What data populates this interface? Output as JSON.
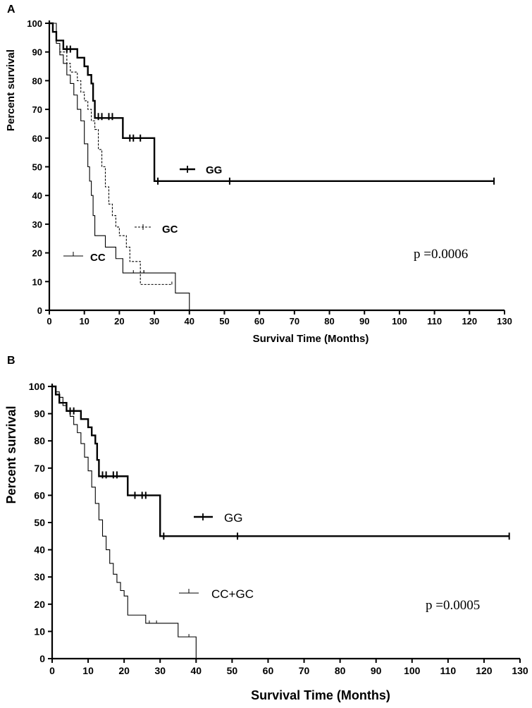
{
  "chart_data": [
    {
      "panel": "A",
      "type": "line",
      "title": "",
      "xlabel": "Survival Time (Months)",
      "ylabel": "Percent survival",
      "xlim": [
        0,
        130
      ],
      "ylim": [
        0,
        100
      ],
      "xticks": [
        0,
        10,
        20,
        30,
        40,
        50,
        60,
        70,
        80,
        90,
        100,
        110,
        120,
        130
      ],
      "yticks": [
        0,
        10,
        20,
        30,
        40,
        50,
        60,
        70,
        80,
        90,
        100
      ],
      "annotation": "p =0.0006",
      "series": [
        {
          "name": "GG",
          "style": "solid-thick",
          "steps": [
            [
              0,
              100
            ],
            [
              1,
              97
            ],
            [
              2,
              94
            ],
            [
              4,
              91
            ],
            [
              8,
              88
            ],
            [
              10,
              85
            ],
            [
              11,
              82
            ],
            [
              12,
              79
            ],
            [
              12.5,
              73
            ],
            [
              13,
              67
            ],
            [
              21,
              60
            ],
            [
              30,
              45
            ],
            [
              127,
              45
            ]
          ],
          "censors": [
            [
              5,
              91
            ],
            [
              6,
              91
            ],
            [
              14,
              67.5
            ],
            [
              15,
              67.5
            ],
            [
              17,
              67.5
            ],
            [
              18,
              67.5
            ],
            [
              23,
              60
            ],
            [
              24,
              60
            ],
            [
              26,
              60
            ],
            [
              31,
              45
            ],
            [
              51.5,
              45
            ],
            [
              127,
              45
            ]
          ]
        },
        {
          "name": "GC",
          "style": "dashed",
          "steps": [
            [
              0,
              100
            ],
            [
              1,
              97
            ],
            [
              2,
              93
            ],
            [
              3,
              90
            ],
            [
              5,
              86
            ],
            [
              6,
              83
            ],
            [
              8,
              80
            ],
            [
              9,
              76
            ],
            [
              10,
              73
            ],
            [
              11,
              70
            ],
            [
              12,
              66
            ],
            [
              13,
              63
            ],
            [
              14,
              56
            ],
            [
              15,
              50
            ],
            [
              16,
              43
            ],
            [
              17,
              37
            ],
            [
              18,
              33
            ],
            [
              19,
              29
            ],
            [
              20,
              26
            ],
            [
              22,
              22
            ],
            [
              23,
              17
            ],
            [
              26,
              9
            ],
            [
              35,
              9
            ]
          ],
          "censors": [
            [
              24,
              13
            ],
            [
              27,
              13
            ],
            [
              35,
              9
            ]
          ]
        },
        {
          "name": "CC",
          "style": "solid-thin",
          "steps": [
            [
              0,
              100
            ],
            [
              2,
              93
            ],
            [
              3,
              89
            ],
            [
              4,
              86
            ],
            [
              5,
              82
            ],
            [
              6,
              79
            ],
            [
              7,
              75
            ],
            [
              8,
              70
            ],
            [
              9,
              66
            ],
            [
              10,
              58
            ],
            [
              11,
              50
            ],
            [
              11.5,
              45
            ],
            [
              12,
              40
            ],
            [
              12.5,
              33
            ],
            [
              13,
              26
            ],
            [
              16,
              22
            ],
            [
              19,
              18
            ],
            [
              21,
              13
            ],
            [
              25,
              13
            ],
            [
              36,
              6
            ],
            [
              40,
              0
            ]
          ],
          "censors": [
            [
              27,
              13
            ]
          ]
        }
      ],
      "legend": [
        {
          "series": "GG",
          "label": "GG"
        },
        {
          "series": "GC",
          "label": "GC"
        },
        {
          "series": "CC",
          "label": "CC"
        }
      ]
    },
    {
      "panel": "B",
      "type": "line",
      "title": "",
      "xlabel": "Survival Time (Months)",
      "ylabel": "Percent survival",
      "xlim": [
        0,
        130
      ],
      "ylim": [
        0,
        100
      ],
      "xticks": [
        0,
        10,
        20,
        30,
        40,
        50,
        60,
        70,
        80,
        90,
        100,
        110,
        120,
        130
      ],
      "yticks": [
        0,
        10,
        20,
        30,
        40,
        50,
        60,
        70,
        80,
        90,
        100
      ],
      "annotation": "p =0.0005",
      "series": [
        {
          "name": "GG",
          "style": "solid-thick",
          "steps": [
            [
              0,
              100
            ],
            [
              1,
              97
            ],
            [
              2,
              94
            ],
            [
              4,
              91
            ],
            [
              8,
              88
            ],
            [
              10,
              85
            ],
            [
              11,
              82
            ],
            [
              12,
              79
            ],
            [
              12.5,
              73
            ],
            [
              13,
              67
            ],
            [
              21,
              60
            ],
            [
              30,
              45
            ],
            [
              127,
              45
            ]
          ],
          "censors": [
            [
              5,
              91
            ],
            [
              6,
              91
            ],
            [
              14,
              67.5
            ],
            [
              15,
              67.5
            ],
            [
              17,
              67.5
            ],
            [
              18,
              67.5
            ],
            [
              23,
              60
            ],
            [
              25,
              60
            ],
            [
              26,
              60
            ],
            [
              31,
              45
            ],
            [
              51.5,
              45
            ],
            [
              127,
              45
            ]
          ]
        },
        {
          "name": "CC+GC",
          "style": "solid-thin",
          "steps": [
            [
              0,
              100
            ],
            [
              1,
              98
            ],
            [
              2,
              96
            ],
            [
              3,
              93
            ],
            [
              4,
              91
            ],
            [
              5,
              89
            ],
            [
              6,
              86
            ],
            [
              7,
              83
            ],
            [
              8,
              79
            ],
            [
              9,
              74
            ],
            [
              10,
              69
            ],
            [
              11,
              63
            ],
            [
              12,
              57
            ],
            [
              13,
              51
            ],
            [
              14,
              45
            ],
            [
              15,
              40
            ],
            [
              16,
              35
            ],
            [
              17,
              31
            ],
            [
              18,
              28
            ],
            [
              19,
              25
            ],
            [
              20,
              23
            ],
            [
              21,
              16
            ],
            [
              26,
              13
            ],
            [
              35,
              8
            ],
            [
              40,
              0
            ]
          ],
          "censors": [
            [
              27,
              13
            ],
            [
              29,
              13
            ],
            [
              38,
              8
            ]
          ]
        }
      ],
      "legend": [
        {
          "series": "GG",
          "label": "GG"
        },
        {
          "series": "CC+GC",
          "label": "CC+GC"
        }
      ]
    }
  ]
}
